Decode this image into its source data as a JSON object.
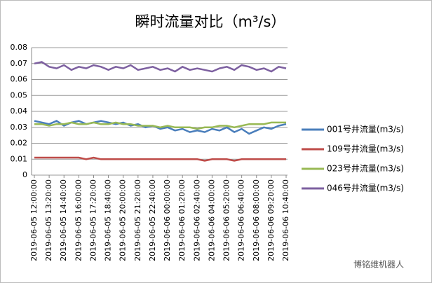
{
  "chart_data": {
    "type": "line",
    "title": "瞬时流量对比（m³/s）",
    "categories": [
      "2019-06-05 12:00:00",
      null,
      "2019-06-05 13:20:00",
      null,
      "2019-06-05 14:40:00",
      null,
      "2019-06-05 16:00:00",
      null,
      "2019-06-05 17:20:00",
      null,
      "2019-06-05 18:40:00",
      null,
      "2019-06-05 20:00:00",
      null,
      "2019-06-05 21:20:00",
      null,
      "2019-06-05 22:40:00",
      null,
      "2019-06-06 00:00:00",
      null,
      "2019-06-06 01:20:00",
      null,
      "2019-06-06 02:40:00",
      null,
      "2019-06-06 04:00:00",
      null,
      "2019-06-06 05:20:00",
      null,
      "2019-06-06 06:40:00",
      null,
      "2019-06-06 08:00:00",
      null,
      "2019-06-06 09:20:00",
      null,
      "2019-06-06 10:40:00"
    ],
    "series": [
      {
        "name": "001号井流量(m3/s)",
        "color": "#4a7ebb",
        "values": [
          0.034,
          0.033,
          0.032,
          0.034,
          0.031,
          0.033,
          0.034,
          0.032,
          0.033,
          0.034,
          0.033,
          0.032,
          0.033,
          0.031,
          0.032,
          0.03,
          0.031,
          0.029,
          0.03,
          0.028,
          0.029,
          0.027,
          0.028,
          0.027,
          0.029,
          0.028,
          0.03,
          0.027,
          0.029,
          0.026,
          0.028,
          0.03,
          0.029,
          0.031,
          0.032
        ]
      },
      {
        "name": "109号井流量(m3/s)",
        "color": "#be4b48",
        "values": [
          0.011,
          0.011,
          0.011,
          0.011,
          0.011,
          0.011,
          0.011,
          0.01,
          0.011,
          0.01,
          0.01,
          0.01,
          0.01,
          0.01,
          0.01,
          0.01,
          0.01,
          0.01,
          0.01,
          0.01,
          0.01,
          0.01,
          0.01,
          0.009,
          0.01,
          0.01,
          0.01,
          0.009,
          0.01,
          0.01,
          0.01,
          0.01,
          0.01,
          0.01,
          0.01
        ]
      },
      {
        "name": "023号井流量(m3/s)",
        "color": "#98b954",
        "values": [
          0.032,
          0.032,
          0.031,
          0.032,
          0.032,
          0.033,
          0.032,
          0.032,
          0.033,
          0.032,
          0.032,
          0.033,
          0.032,
          0.032,
          0.031,
          0.031,
          0.031,
          0.03,
          0.031,
          0.03,
          0.03,
          0.03,
          0.029,
          0.03,
          0.03,
          0.031,
          0.031,
          0.03,
          0.031,
          0.032,
          0.032,
          0.032,
          0.033,
          0.033,
          0.033
        ]
      },
      {
        "name": "046号井流量(m3/s)",
        "color": "#7d60a0",
        "values": [
          0.07,
          0.071,
          0.068,
          0.067,
          0.069,
          0.066,
          0.068,
          0.067,
          0.069,
          0.068,
          0.066,
          0.068,
          0.067,
          0.069,
          0.066,
          0.067,
          0.068,
          0.066,
          0.067,
          0.065,
          0.068,
          0.066,
          0.067,
          0.066,
          0.065,
          0.067,
          0.068,
          0.066,
          0.069,
          0.068,
          0.066,
          0.067,
          0.065,
          0.068,
          0.067
        ]
      }
    ],
    "ylim": [
      0,
      0.08
    ],
    "yticks": [
      0,
      0.01,
      0.02,
      0.03,
      0.04,
      0.05,
      0.06,
      0.07,
      0.08
    ],
    "grid": true,
    "legend": "right",
    "watermark": "博铭维机器人"
  }
}
